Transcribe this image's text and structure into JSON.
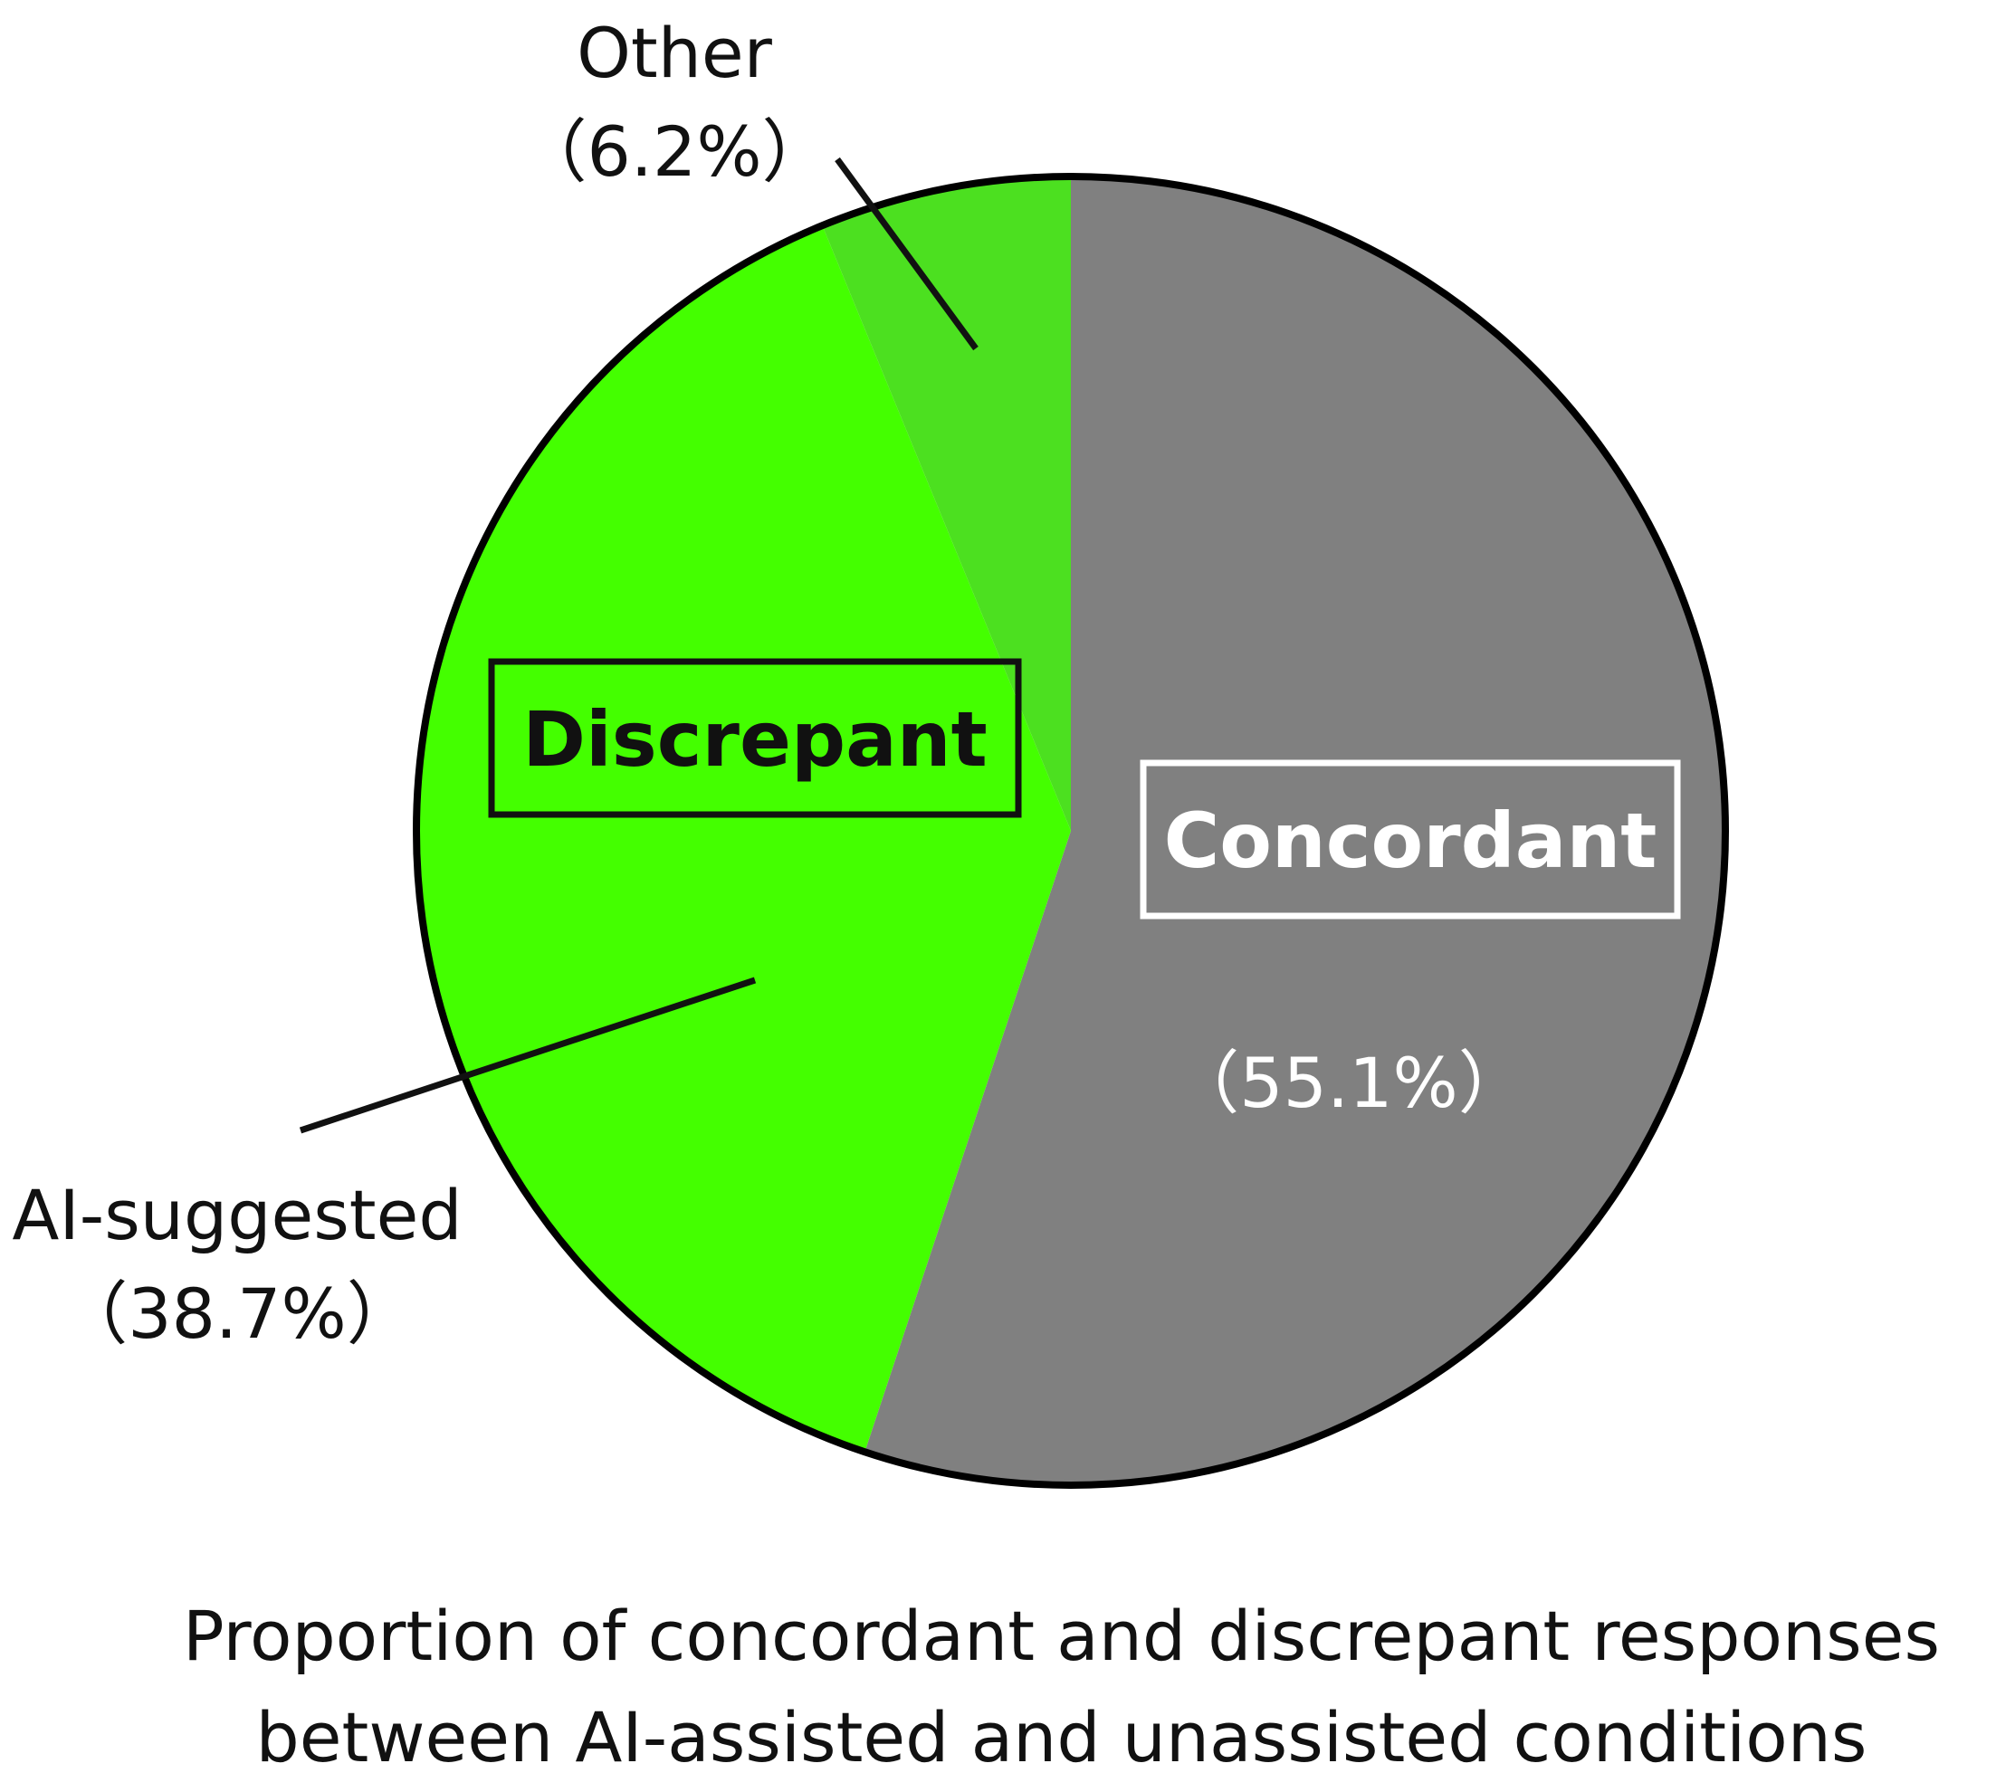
{
  "chart_data": {
    "type": "pie",
    "title": "",
    "slices": [
      {
        "key": "concordant",
        "value": 55.1,
        "color": "#808080"
      },
      {
        "key": "ai_suggested",
        "value": 38.7,
        "color": "#44ff00"
      },
      {
        "key": "other",
        "value": 6.2,
        "color": "#4ce020"
      }
    ],
    "labels": {
      "concordant_name": "Concordant",
      "concordant_pct": "（55.1%）",
      "discrepant_group": "Discrepant",
      "ai_suggested_name": "AI-suggested",
      "ai_suggested_pct": "（38.7%）",
      "other_name": "Other",
      "other_pct": "（6.2%）"
    },
    "colors": {
      "outline": "#000000",
      "box_dark": "#111111",
      "box_light": "#ffffff",
      "text_light": "#ffffff",
      "text_dark": "#111111"
    }
  },
  "caption": {
    "line1": "Proportion of concordant and discrepant responses",
    "line2": "between AI-assisted and unassisted conditions"
  }
}
